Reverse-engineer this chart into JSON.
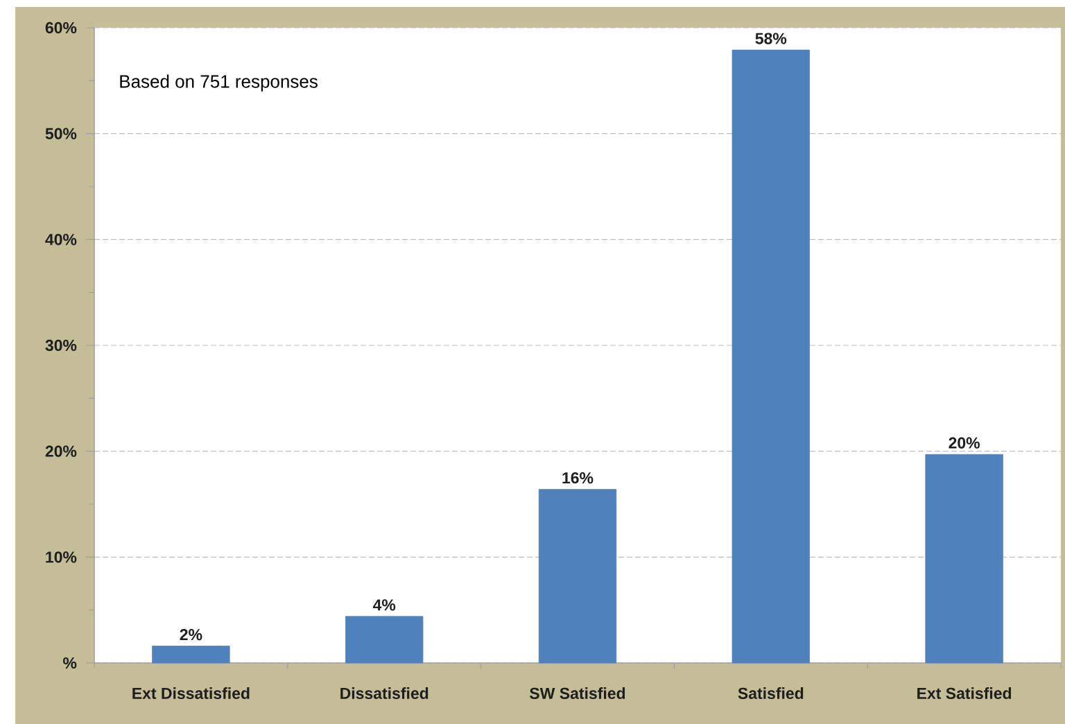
{
  "chart_data": {
    "type": "bar",
    "categories": [
      "Ext Dissatisfied",
      "Dissatisfied",
      "SW Satisfied",
      "Satisfied",
      "Ext Satisfied"
    ],
    "values": [
      1.6,
      4.4,
      16.4,
      57.9,
      19.7
    ],
    "value_labels": [
      "2%",
      "4%",
      "16%",
      "58%",
      "20%"
    ],
    "color": "#4f81bd",
    "ylim": [
      0,
      60
    ],
    "yticks": [
      {
        "value": 0,
        "label": "%"
      },
      {
        "value": 5,
        "label": null
      },
      {
        "value": 10,
        "label": "10%"
      },
      {
        "value": 15,
        "label": null
      },
      {
        "value": 20,
        "label": "20%"
      },
      {
        "value": 25,
        "label": null
      },
      {
        "value": 30,
        "label": "30%"
      },
      {
        "value": 35,
        "label": null
      },
      {
        "value": 40,
        "label": "40%"
      },
      {
        "value": 45,
        "label": null
      },
      {
        "value": 50,
        "label": "50%"
      },
      {
        "value": 55,
        "label": null
      },
      {
        "value": 60,
        "label": "60%"
      }
    ],
    "grid": "y",
    "annotations": [
      "Based on 751 responses"
    ]
  }
}
